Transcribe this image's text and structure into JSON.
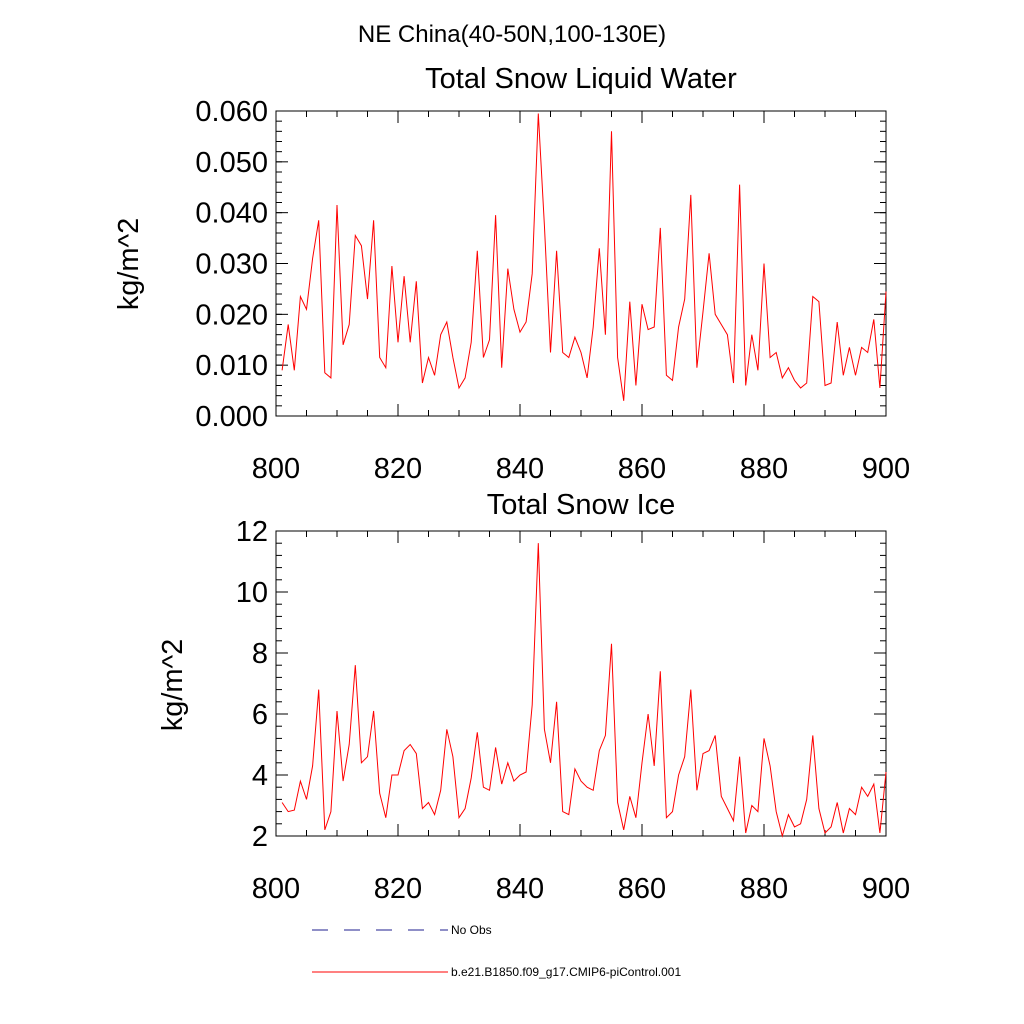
{
  "suptitle": "NE China(40-50N,100-130E)",
  "legend": {
    "items": [
      {
        "label": "No Obs",
        "color": "#1f1f8f",
        "dash": true
      },
      {
        "label": "b.e21.B1850.f09_g17.CMIP6-piControl.001",
        "color": "#ff0000",
        "dash": false
      }
    ]
  },
  "chart_data": [
    {
      "type": "line",
      "title": "Total Snow Liquid Water",
      "xlabel": "",
      "ylabel": "kg/m^2",
      "xlim": [
        800,
        900
      ],
      "ylim": [
        0.0,
        0.06
      ],
      "xticks": [
        800,
        820,
        840,
        860,
        880,
        900
      ],
      "xtick_labels": [
        "800",
        "820",
        "840",
        "860",
        "880",
        "900"
      ],
      "yticks": [
        0.0,
        0.01,
        0.02,
        0.03,
        0.04,
        0.05,
        0.06
      ],
      "ytick_labels": [
        "0.000",
        "0.010",
        "0.020",
        "0.030",
        "0.040",
        "0.050",
        "0.060"
      ],
      "grid": false,
      "series": [
        {
          "color": "#ff0000",
          "x": [
            801,
            802,
            803,
            804,
            805,
            806,
            807,
            808,
            809,
            810,
            811,
            812,
            813,
            814,
            815,
            816,
            817,
            818,
            819,
            820,
            821,
            822,
            823,
            824,
            825,
            826,
            827,
            828,
            829,
            830,
            831,
            832,
            833,
            834,
            835,
            836,
            837,
            838,
            839,
            840,
            841,
            842,
            843,
            844,
            845,
            846,
            847,
            848,
            849,
            850,
            851,
            852,
            853,
            854,
            855,
            856,
            857,
            858,
            859,
            860,
            861,
            862,
            863,
            864,
            865,
            866,
            867,
            868,
            869,
            870,
            871,
            872,
            873,
            874,
            875,
            876,
            877,
            878,
            879,
            880,
            881,
            882,
            883,
            884,
            885,
            886,
            887,
            888,
            889,
            890,
            891,
            892,
            893,
            894,
            895,
            896,
            897,
            898,
            899,
            900
          ],
          "values": [
            0.009,
            0.018,
            0.009,
            0.0235,
            0.021,
            0.031,
            0.0385,
            0.0085,
            0.0075,
            0.0415,
            0.014,
            0.018,
            0.0355,
            0.0335,
            0.023,
            0.0385,
            0.0115,
            0.0095,
            0.0295,
            0.0145,
            0.0275,
            0.0145,
            0.0265,
            0.0065,
            0.0115,
            0.008,
            0.016,
            0.0185,
            0.0115,
            0.0055,
            0.0075,
            0.0145,
            0.0325,
            0.0115,
            0.015,
            0.0395,
            0.0095,
            0.029,
            0.021,
            0.0165,
            0.0185,
            0.028,
            0.0595,
            0.0375,
            0.0125,
            0.0325,
            0.0125,
            0.0115,
            0.0155,
            0.0125,
            0.0075,
            0.0175,
            0.033,
            0.016,
            0.056,
            0.0115,
            0.003,
            0.0225,
            0.006,
            0.022,
            0.017,
            0.0175,
            0.037,
            0.008,
            0.007,
            0.0175,
            0.023,
            0.0435,
            0.0095,
            0.0205,
            0.032,
            0.02,
            0.018,
            0.016,
            0.0065,
            0.0455,
            0.006,
            0.016,
            0.009,
            0.03,
            0.0115,
            0.0125,
            0.0075,
            0.0095,
            0.007,
            0.0055,
            0.0065,
            0.0235,
            0.0225,
            0.006,
            0.0065,
            0.0185,
            0.008,
            0.0135,
            0.008,
            0.0135,
            0.0125,
            0.019,
            0.0055,
            0.0245
          ]
        }
      ]
    },
    {
      "type": "line",
      "title": "Total Snow Ice",
      "xlabel": "",
      "ylabel": "kg/m^2",
      "xlim": [
        800,
        900
      ],
      "ylim": [
        2,
        12
      ],
      "xticks": [
        800,
        820,
        840,
        860,
        880,
        900
      ],
      "xtick_labels": [
        "800",
        "820",
        "840",
        "860",
        "880",
        "900"
      ],
      "yticks": [
        2,
        4,
        6,
        8,
        10,
        12
      ],
      "ytick_labels": [
        "2",
        "4",
        "6",
        "8",
        "10",
        "12"
      ],
      "grid": false,
      "series": [
        {
          "color": "#ff0000",
          "x": [
            801,
            802,
            803,
            804,
            805,
            806,
            807,
            808,
            809,
            810,
            811,
            812,
            813,
            814,
            815,
            816,
            817,
            818,
            819,
            820,
            821,
            822,
            823,
            824,
            825,
            826,
            827,
            828,
            829,
            830,
            831,
            832,
            833,
            834,
            835,
            836,
            837,
            838,
            839,
            840,
            841,
            842,
            843,
            844,
            845,
            846,
            847,
            848,
            849,
            850,
            851,
            852,
            853,
            854,
            855,
            856,
            857,
            858,
            859,
            860,
            861,
            862,
            863,
            864,
            865,
            866,
            867,
            868,
            869,
            870,
            871,
            872,
            873,
            874,
            875,
            876,
            877,
            878,
            879,
            880,
            881,
            882,
            883,
            884,
            885,
            886,
            887,
            888,
            889,
            890,
            891,
            892,
            893,
            894,
            895,
            896,
            897,
            898,
            899,
            900
          ],
          "values": [
            3.1,
            2.8,
            2.85,
            3.8,
            3.2,
            4.3,
            6.8,
            2.2,
            2.8,
            6.1,
            3.8,
            5.0,
            7.6,
            4.4,
            4.6,
            6.1,
            3.4,
            2.6,
            4.0,
            4.0,
            4.8,
            5.0,
            4.7,
            2.9,
            3.1,
            2.7,
            3.5,
            5.5,
            4.6,
            2.6,
            2.9,
            3.9,
            5.4,
            3.6,
            3.5,
            4.9,
            3.7,
            4.4,
            3.8,
            4.0,
            4.1,
            6.3,
            11.6,
            5.5,
            4.4,
            6.4,
            2.8,
            2.7,
            4.2,
            3.8,
            3.6,
            3.5,
            4.8,
            5.3,
            8.3,
            3.1,
            2.2,
            3.3,
            2.6,
            4.4,
            6.0,
            4.3,
            7.4,
            2.6,
            2.8,
            4.0,
            4.6,
            6.8,
            3.5,
            4.7,
            4.8,
            5.3,
            3.3,
            2.9,
            2.5,
            4.6,
            2.1,
            3.0,
            2.8,
            5.2,
            4.3,
            2.8,
            2.0,
            2.7,
            2.3,
            2.4,
            3.2,
            5.3,
            2.9,
            2.1,
            2.3,
            3.1,
            2.1,
            2.9,
            2.7,
            3.6,
            3.3,
            3.7,
            2.1,
            4.1
          ]
        }
      ]
    }
  ]
}
